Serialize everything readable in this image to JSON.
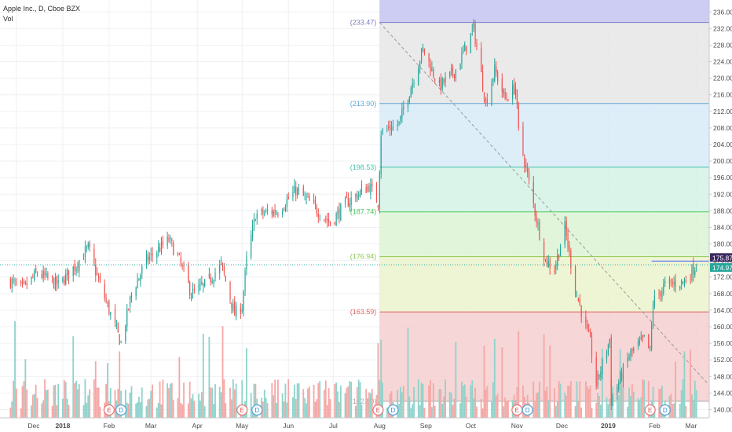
{
  "header": {
    "title": "Apple Inc., D, Cboe BZX",
    "volume_label": "Vol"
  },
  "colors": {
    "up": "#26a69a",
    "down": "#ef5350",
    "volume_up": "#8fd3cb",
    "volume_down": "#f5a8a6",
    "grid": "#eef0f3",
    "axis_text": "#4a4a4a"
  },
  "chart_data": {
    "type": "candlestick",
    "ylim": [
      138,
      237
    ],
    "y_ticks": [
      "140.00",
      "144.00",
      "148.00",
      "152.00",
      "156.00",
      "160.00",
      "164.00",
      "168.00",
      "172.00",
      "176.00",
      "180.00",
      "184.00",
      "188.00",
      "192.00",
      "196.00",
      "200.00",
      "204.00",
      "208.00",
      "212.00",
      "216.00",
      "220.00",
      "224.00",
      "228.00",
      "232.00",
      "236.00"
    ],
    "x_labels": [
      "Dec",
      "2018",
      "Feb",
      "Mar",
      "Apr",
      "May",
      "Jun",
      "Jul",
      "Aug",
      "Sep",
      "Oct",
      "Nov",
      "Dec",
      "2019",
      "Feb",
      "Mar"
    ],
    "price_path": [
      [
        "2017-11-27",
        171
      ],
      [
        "2017-12-05",
        169
      ],
      [
        "2017-12-15",
        173
      ],
      [
        "2017-12-29",
        170
      ],
      [
        "2018-01-10",
        175
      ],
      [
        "2018-01-18",
        179
      ],
      [
        "2018-01-26",
        170
      ],
      [
        "2018-02-06",
        159
      ],
      [
        "2018-02-09",
        156
      ],
      [
        "2018-02-16",
        168
      ],
      [
        "2018-02-26",
        176
      ],
      [
        "2018-03-13",
        181
      ],
      [
        "2018-03-20",
        176
      ],
      [
        "2018-03-28",
        168
      ],
      [
        "2018-04-06",
        170
      ],
      [
        "2018-04-17",
        175
      ],
      [
        "2018-04-26",
        163
      ],
      [
        "2018-05-01",
        165
      ],
      [
        "2018-05-04",
        176
      ],
      [
        "2018-05-10",
        187
      ],
      [
        "2018-05-25",
        188
      ],
      [
        "2018-06-06",
        193
      ],
      [
        "2018-06-15",
        190
      ],
      [
        "2018-06-29",
        185
      ],
      [
        "2018-07-10",
        190
      ],
      [
        "2018-07-25",
        194
      ],
      [
        "2018-07-31",
        190
      ],
      [
        "2018-08-02",
        207
      ],
      [
        "2018-08-14",
        209
      ],
      [
        "2018-08-30",
        227
      ],
      [
        "2018-09-10",
        218
      ],
      [
        "2018-09-21",
        222
      ],
      [
        "2018-10-03",
        232
      ],
      [
        "2018-10-11",
        214
      ],
      [
        "2018-10-17",
        222
      ],
      [
        "2018-10-24",
        215
      ],
      [
        "2018-10-31",
        218
      ],
      [
        "2018-11-02",
        207
      ],
      [
        "2018-11-14",
        186
      ],
      [
        "2018-11-20",
        176
      ],
      [
        "2018-11-26",
        174
      ],
      [
        "2018-12-03",
        184
      ],
      [
        "2018-12-10",
        169
      ],
      [
        "2018-12-20",
        156
      ],
      [
        "2018-12-24",
        146
      ],
      [
        "2019-01-02",
        157
      ],
      [
        "2019-01-03",
        142
      ],
      [
        "2019-01-15",
        153
      ],
      [
        "2019-01-25",
        157
      ],
      [
        "2019-01-29",
        154
      ],
      [
        "2019-01-31",
        166
      ],
      [
        "2019-02-08",
        170
      ],
      [
        "2019-02-21",
        171
      ],
      [
        "2019-03-01",
        174.97
      ]
    ],
    "volume_events": [
      {
        "label": "E",
        "date": "2018-02-01"
      },
      {
        "label": "D",
        "date": "2018-02-09"
      },
      {
        "label": "E",
        "date": "2018-05-01"
      },
      {
        "label": "D",
        "date": "2018-05-11"
      },
      {
        "label": "E",
        "date": "2018-07-31"
      },
      {
        "label": "D",
        "date": "2018-08-10"
      },
      {
        "label": "E",
        "date": "2018-11-01"
      },
      {
        "label": "D",
        "date": "2018-11-08"
      },
      {
        "label": "E",
        "date": "2019-01-29"
      },
      {
        "label": "D",
        "date": "2019-02-08"
      }
    ],
    "fibonacci": {
      "start": "2018-08-01",
      "end": "2019-03-08",
      "trend_line": [
        [
          "2018-08-01",
          233.47
        ],
        [
          "2019-03-08",
          146.5
        ]
      ],
      "levels": [
        {
          "label": "(233.47)",
          "value": 233.47,
          "color": "#7e7ec8",
          "fill": "#cdcdf3"
        },
        {
          "label": "(213.90)",
          "value": 213.9,
          "color": "#5fa8d8",
          "fill": "#e6e6e6"
        },
        {
          "label": "(198.53)",
          "value": 198.53,
          "color": "#45c2a8",
          "fill": "#d7ebf8"
        },
        {
          "label": "(187.74)",
          "value": 187.74,
          "color": "#4ec95e",
          "fill": "#d4f2e5"
        },
        {
          "label": "(176.94)",
          "value": 176.94,
          "color": "#8fc94e",
          "fill": "#dbf3d4"
        },
        {
          "label": "(163.59)",
          "value": 163.59,
          "color": "#e06666",
          "fill": "#ebf3cd"
        },
        {
          "label": "(142.00)",
          "value": 142.0,
          "color": "#aaaaaa",
          "fill": "#f4cfcf"
        }
      ]
    },
    "price_labels": [
      {
        "text": "175.87",
        "value": 175.87,
        "bg": "#3c2a63"
      },
      {
        "text": "174.97",
        "value": 174.97,
        "bg": "#26a69a"
      }
    ],
    "resistance_line": {
      "value": 175.87,
      "start": "2019-01-30",
      "end": "2019-03-01",
      "color": "#3d5afe"
    }
  }
}
